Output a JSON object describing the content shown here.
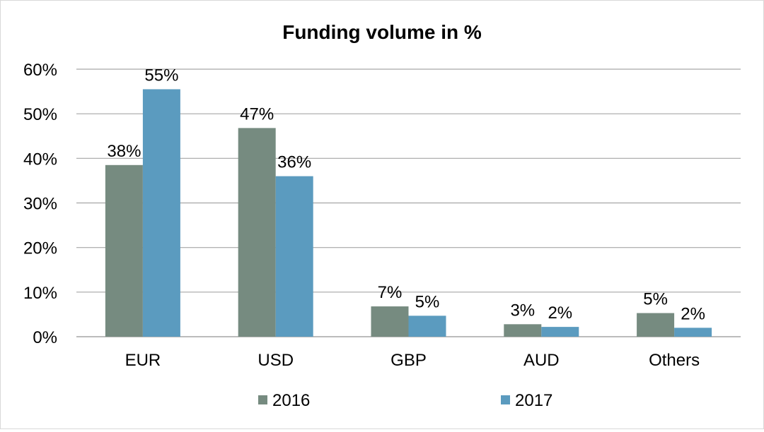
{
  "chart_data": {
    "type": "bar",
    "title": "Funding volume in %",
    "xlabel": "",
    "ylabel": "",
    "categories": [
      "EUR",
      "USD",
      "GBP",
      "AUD",
      "Others"
    ],
    "series": [
      {
        "name": "2016",
        "color": "#768b80",
        "values": [
          38.5,
          46.8,
          6.8,
          2.8,
          5.3
        ],
        "labels": [
          "38%",
          "47%",
          "7%",
          "3%",
          "5%"
        ]
      },
      {
        "name": "2017",
        "color": "#5b9bbf",
        "values": [
          55.5,
          36.0,
          4.7,
          2.2,
          2.0
        ],
        "labels": [
          "55%",
          "36%",
          "5%",
          "2%",
          "2%"
        ]
      }
    ],
    "ylim": [
      0,
      60
    ],
    "yticks": [
      "0%",
      "10%",
      "20%",
      "30%",
      "40%",
      "50%",
      "60%"
    ],
    "grid": true,
    "gridline_color": "#a6a6a6",
    "legend_position": "bottom"
  }
}
